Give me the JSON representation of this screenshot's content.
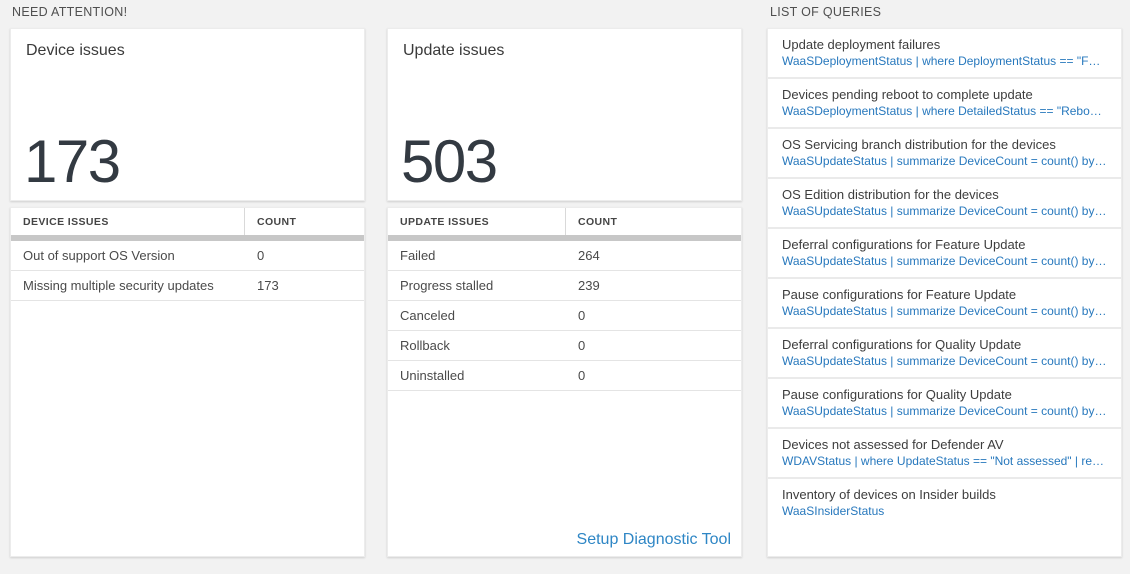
{
  "sections": {
    "need_attention": {
      "label": "NEED ATTENTION!"
    },
    "list_of_queries": {
      "label": "LIST OF QUERIES"
    }
  },
  "device_issues": {
    "title": "Device issues",
    "big_number": "173",
    "table": {
      "headers": [
        "DEVICE ISSUES",
        "COUNT"
      ],
      "rows": [
        {
          "label": "Out of support OS Version",
          "count": "0"
        },
        {
          "label": "Missing multiple security updates",
          "count": "173"
        }
      ]
    }
  },
  "update_issues": {
    "title": "Update issues",
    "big_number": "503",
    "table": {
      "headers": [
        "UPDATE ISSUES",
        "COUNT"
      ],
      "rows": [
        {
          "label": "Failed",
          "count": "264"
        },
        {
          "label": "Progress stalled",
          "count": "239"
        },
        {
          "label": "Canceled",
          "count": "0"
        },
        {
          "label": "Rollback",
          "count": "0"
        },
        {
          "label": "Uninstalled",
          "count": "0"
        }
      ]
    },
    "setup_link": "Setup Diagnostic Tool"
  },
  "queries": {
    "items": [
      {
        "title": "Update deployment failures",
        "query": "WaaSDeploymentStatus | where DeploymentStatus == \"Failed\" |..."
      },
      {
        "title": "Devices pending reboot to complete update",
        "query": "WaaSDeploymentStatus | where DetailedStatus == \"Reboot pend..."
      },
      {
        "title": "OS Servicing branch distribution for the devices",
        "query": "WaaSUpdateStatus | summarize DeviceCount = count() by OSSer..."
      },
      {
        "title": "OS Edition distribution for the devices",
        "query": "WaaSUpdateStatus | summarize DeviceCount = count() by OSEdit..."
      },
      {
        "title": "Deferral configurations for Feature Update",
        "query": "WaaSUpdateStatus | summarize DeviceCount = count() by Featur..."
      },
      {
        "title": "Pause configurations for Feature Update",
        "query": "WaaSUpdateStatus | summarize DeviceCount = count() by Featur..."
      },
      {
        "title": "Deferral configurations for Quality Update",
        "query": "WaaSUpdateStatus | summarize DeviceCount = count() by Qualit..."
      },
      {
        "title": "Pause configurations for Quality Update",
        "query": "WaaSUpdateStatus | summarize DeviceCount = count() by Qualit..."
      },
      {
        "title": "Devices not assessed for Defender AV",
        "query": "WDAVStatus | where UpdateStatus == \"Not assessed\" | render ta..."
      },
      {
        "title": "Inventory of devices on Insider builds",
        "query": "WaaSInsiderStatus"
      }
    ]
  },
  "colors": {
    "page_background": "#f2f2f2",
    "card_background": "#ffffff",
    "big_number_text": "#333a42",
    "query_link_blue": "#2778bd",
    "setup_link_blue": "#2e86c5",
    "scrollbar_gray": "#c7c7c7"
  }
}
